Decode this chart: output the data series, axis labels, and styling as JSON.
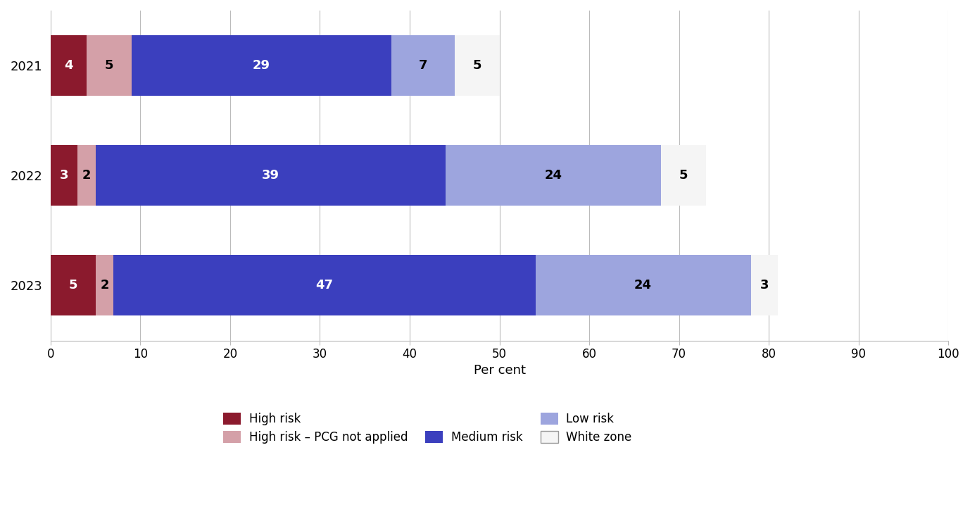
{
  "years": [
    "2021",
    "2022",
    "2023"
  ],
  "segments": {
    "High risk": [
      4,
      3,
      5
    ],
    "High risk – PCG not applied": [
      5,
      2,
      2
    ],
    "Medium risk": [
      29,
      39,
      47
    ],
    "Low risk": [
      7,
      24,
      24
    ],
    "White zone": [
      5,
      5,
      3
    ]
  },
  "colors": {
    "High risk": "#8B1A2D",
    "High risk – PCG not applied": "#D4A0A8",
    "Medium risk": "#3B3FBE",
    "Low risk": "#9DA5DE",
    "White zone": "#F5F5F5"
  },
  "label_colors": {
    "High risk": "white",
    "High risk – PCG not applied": "black",
    "Medium risk": "white",
    "Low risk": "black",
    "White zone": "black"
  },
  "xlabel": "Per cent",
  "xlim": [
    0,
    100
  ],
  "xticks": [
    0,
    10,
    20,
    30,
    40,
    50,
    60,
    70,
    80,
    90,
    100
  ],
  "background_color": "#FFFFFF",
  "bar_height": 0.55,
  "legend_order": [
    "High risk",
    "High risk – PCG not applied",
    "Medium risk",
    "Low risk",
    "White zone"
  ]
}
